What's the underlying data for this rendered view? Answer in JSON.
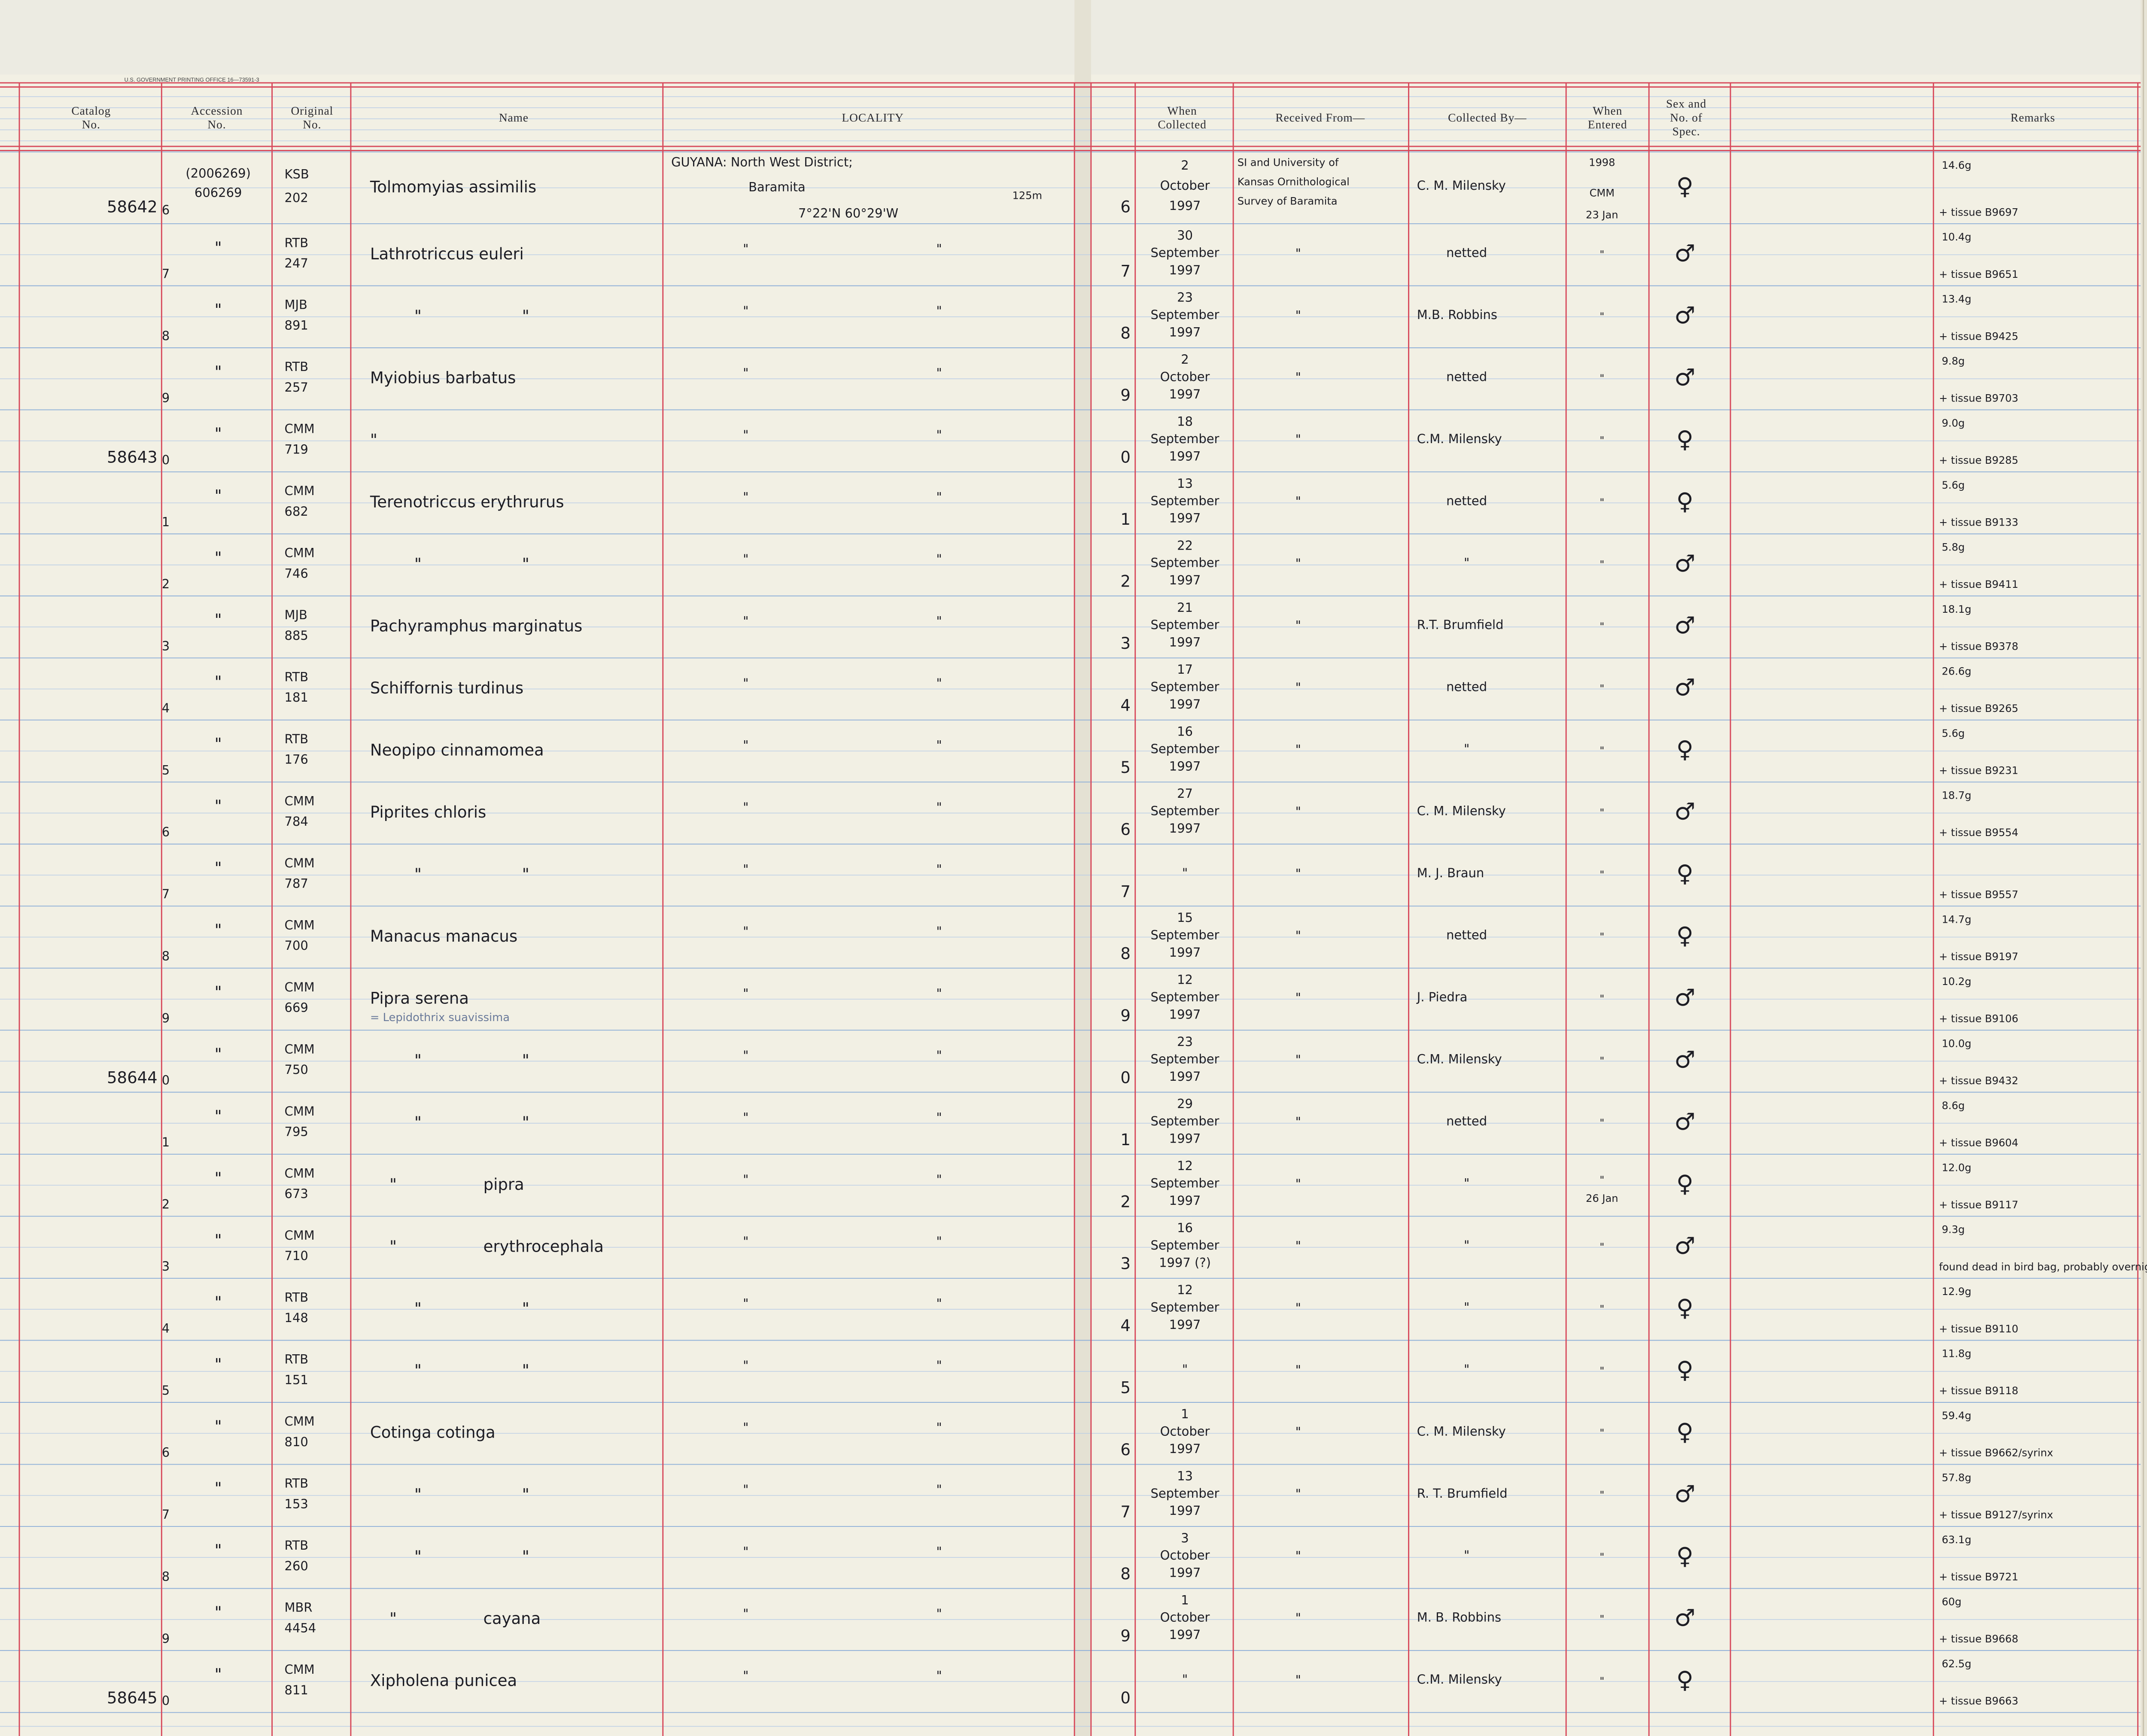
{
  "header": {
    "printer": "U.S. GOVERNMENT PRINTING OFFICE   16—73591-3",
    "columns": [
      [
        "Catalog",
        "No."
      ],
      [
        "Accession",
        "No."
      ],
      [
        "Original",
        "No."
      ],
      [
        "Name"
      ],
      [
        "LOCALITY"
      ],
      [
        "When",
        "Collected"
      ],
      [
        "Received From—"
      ],
      [
        "Collected By—"
      ],
      [
        "When",
        "Entered"
      ],
      [
        "Sex and",
        "No. of",
        "Spec."
      ],
      [
        "Remarks"
      ]
    ]
  },
  "rows": [
    {
      "catalog": "58642",
      "digit": "6",
      "accession": [
        "(2006269)",
        "606269"
      ],
      "original": [
        "KSB",
        "202"
      ],
      "name": "Tolmomyias assimilis",
      "locality": [
        "GUYANA: North West District;",
        "Baramita",
        "7°22'N 60°29'W",
        "125m"
      ],
      "number": "6",
      "collected": [
        "2",
        "October",
        "1997"
      ],
      "received": [
        "SI and University of",
        "Kansas Ornithological",
        "Survey of Baramita"
      ],
      "collected_by": "C. M. Milensky",
      "entered": [
        "1998",
        "CMM",
        "23 Jan"
      ],
      "sex": "♀",
      "weight": "14.6g",
      "tissue": "+ tissue B9697"
    },
    {
      "digit": "7",
      "accession": "\"",
      "original": [
        "RTB",
        "247"
      ],
      "name": "Lathrotriccus euleri",
      "locality": [
        "\"",
        "\""
      ],
      "number": "7",
      "collected": [
        "30",
        "September",
        "1997"
      ],
      "received": "\"",
      "collected_by": "netted",
      "entered": "\"",
      "sex": "♂",
      "weight": "10.4g",
      "tissue": "+ tissue B9651"
    },
    {
      "digit": "8",
      "accession": "\"",
      "original": [
        "MJB",
        "891"
      ],
      "name": [
        "\"",
        "\""
      ],
      "locality": [
        "\"",
        "\""
      ],
      "number": "8",
      "collected": [
        "23",
        "September",
        "1997"
      ],
      "received": "\"",
      "collected_by": "M.B. Robbins",
      "entered": "\"",
      "sex": "♂",
      "weight": "13.4g",
      "tissue": "+ tissue B9425"
    },
    {
      "digit": "9",
      "accession": "\"",
      "original": [
        "RTB",
        "257"
      ],
      "name": "Myiobius barbatus",
      "locality": [
        "\"",
        "\""
      ],
      "number": "9",
      "collected": [
        "2",
        "October",
        "1997"
      ],
      "received": "\"",
      "collected_by": "netted",
      "entered": "\"",
      "sex": "♂",
      "weight": "9.8g",
      "tissue": "+ tissue B9703"
    },
    {
      "catalog": "58643",
      "digit": "0",
      "accession": "\"",
      "original": [
        "CMM",
        "719"
      ],
      "name": "\"",
      "locality": [
        "\"",
        "\""
      ],
      "number": "0",
      "collected": [
        "18",
        "September",
        "1997"
      ],
      "received": "\"",
      "collected_by": "C.M. Milensky",
      "entered": "\"",
      "sex": "♀",
      "weight": "9.0g",
      "tissue": "+ tissue B9285"
    },
    {
      "digit": "1",
      "accession": "\"",
      "original": [
        "CMM",
        "682"
      ],
      "name": "Terenotriccus erythrurus",
      "locality": [
        "\"",
        "\""
      ],
      "number": "1",
      "collected": [
        "13",
        "September",
        "1997"
      ],
      "received": "\"",
      "collected_by": "netted",
      "entered": "\"",
      "sex": "♀",
      "weight": "5.6g",
      "tissue": "+ tissue B9133"
    },
    {
      "digit": "2",
      "accession": "\"",
      "original": [
        "CMM",
        "746"
      ],
      "name": [
        "\"",
        "\""
      ],
      "locality": [
        "\"",
        "\""
      ],
      "number": "2",
      "collected": [
        "22",
        "September",
        "1997"
      ],
      "received": "\"",
      "collected_by": "\"",
      "entered": "\"",
      "sex": "♂",
      "weight": "5.8g",
      "tissue": "+ tissue B9411"
    },
    {
      "digit": "3",
      "accession": "\"",
      "original": [
        "MJB",
        "885"
      ],
      "name": "Pachyramphus marginatus",
      "locality": [
        "\"",
        "\""
      ],
      "number": "3",
      "collected": [
        "21",
        "September",
        "1997"
      ],
      "received": "\"",
      "collected_by": "R.T. Brumfield",
      "entered": "\"",
      "sex": "♂",
      "weight": "18.1g",
      "tissue": "+ tissue B9378"
    },
    {
      "digit": "4",
      "accession": "\"",
      "original": [
        "RTB",
        "181"
      ],
      "name": "Schiffornis turdinus",
      "locality": [
        "\"",
        "\""
      ],
      "number": "4",
      "collected": [
        "17",
        "September",
        "1997"
      ],
      "received": "\"",
      "collected_by": "netted",
      "entered": "\"",
      "sex": "♂",
      "weight": "26.6g",
      "tissue": "+ tissue B9265"
    },
    {
      "digit": "5",
      "accession": "\"",
      "original": [
        "RTB",
        "176"
      ],
      "name": "Neopipo cinnamomea",
      "locality": [
        "\"",
        "\""
      ],
      "number": "5",
      "collected": [
        "16",
        "September",
        "1997"
      ],
      "received": "\"",
      "collected_by": "\"",
      "entered": "\"",
      "sex": "♀",
      "weight": "5.6g",
      "tissue": "+ tissue B9231"
    },
    {
      "digit": "6",
      "accession": "\"",
      "original": [
        "CMM",
        "784"
      ],
      "name": "Piprites chloris",
      "locality": [
        "\"",
        "\""
      ],
      "number": "6",
      "collected": [
        "27",
        "September",
        "1997"
      ],
      "received": "\"",
      "collected_by": "C. M. Milensky",
      "entered": "\"",
      "sex": "♂",
      "weight": "18.7g",
      "tissue": "+ tissue B9554"
    },
    {
      "digit": "7",
      "accession": "\"",
      "original": [
        "CMM",
        "787"
      ],
      "name": [
        "\"",
        "\""
      ],
      "locality": [
        "\"",
        "\""
      ],
      "number": "7",
      "collected": "\"",
      "received": "\"",
      "collected_by": "M. J. Braun",
      "entered": "\"",
      "sex": "♀",
      "tissue": "+ tissue B9557"
    },
    {
      "digit": "8",
      "accession": "\"",
      "original": [
        "CMM",
        "700"
      ],
      "name": "Manacus manacus",
      "locality": [
        "\"",
        "\""
      ],
      "number": "8",
      "collected": [
        "15",
        "September",
        "1997"
      ],
      "received": "\"",
      "collected_by": "netted",
      "entered": "\"",
      "sex": "♀",
      "weight": "14.7g",
      "tissue": "+ tissue B9197"
    },
    {
      "digit": "9",
      "accession": "\"",
      "original": [
        "CMM",
        "669"
      ],
      "name": "Pipra serena",
      "name_note": "= Lepidothrix suavissima",
      "locality": [
        "\"",
        "\""
      ],
      "number": "9",
      "collected": [
        "12",
        "September",
        "1997"
      ],
      "received": "\"",
      "collected_by": "J. Piedra",
      "entered": "\"",
      "sex": "♂",
      "weight": "10.2g",
      "tissue": "+ tissue B9106"
    },
    {
      "catalog": "58644",
      "digit": "0",
      "accession": "\"",
      "original": [
        "CMM",
        "750"
      ],
      "name": [
        "\"",
        "\""
      ],
      "locality": [
        "\"",
        "\""
      ],
      "number": "0",
      "collected": [
        "23",
        "September",
        "1997"
      ],
      "received": "\"",
      "collected_by": "C.M. Milensky",
      "entered": "\"",
      "sex": "♂",
      "weight": "10.0g",
      "tissue": "+ tissue B9432"
    },
    {
      "digit": "1",
      "accession": "\"",
      "original": [
        "CMM",
        "795"
      ],
      "name": [
        "\"",
        "\""
      ],
      "locality": [
        "\"",
        "\""
      ],
      "number": "1",
      "collected": [
        "29",
        "September",
        "1997"
      ],
      "received": "\"",
      "collected_by": "netted",
      "entered": "\"",
      "sex": "♂",
      "weight": "8.6g",
      "tissue": "+ tissue B9604"
    },
    {
      "digit": "2",
      "accession": "\"",
      "original": [
        "CMM",
        "673"
      ],
      "name": [
        "\"",
        "pipra"
      ],
      "locality": [
        "\"",
        "\""
      ],
      "number": "2",
      "collected": [
        "12",
        "September",
        "1997"
      ],
      "received": "\"",
      "collected_by": "\"",
      "entered": [
        "\"",
        "26 Jan"
      ],
      "sex": "♀",
      "weight": "12.0g",
      "tissue": "+ tissue B9117"
    },
    {
      "digit": "3",
      "accession": "\"",
      "original": [
        "CMM",
        "710"
      ],
      "name": [
        "\"",
        "erythrocephala"
      ],
      "locality": [
        "\"",
        "\""
      ],
      "number": "3",
      "collected": [
        "16",
        "September",
        "1997 (?)"
      ],
      "received": "\"",
      "collected_by": "\"",
      "entered": "\"",
      "sex": "♂",
      "weight": "9.3g",
      "tissue": "found dead in bird bag, probably overnight"
    },
    {
      "digit": "4",
      "accession": "\"",
      "original": [
        "RTB",
        "148"
      ],
      "name": [
        "\"",
        "\""
      ],
      "locality": [
        "\"",
        "\""
      ],
      "number": "4",
      "collected": [
        "12",
        "September",
        "1997"
      ],
      "received": "\"",
      "collected_by": "\"",
      "entered": "\"",
      "sex": "♀",
      "weight": "12.9g",
      "tissue": "+ tissue B9110"
    },
    {
      "digit": "5",
      "accession": "\"",
      "original": [
        "RTB",
        "151"
      ],
      "name": [
        "\"",
        "\""
      ],
      "locality": [
        "\"",
        "\""
      ],
      "number": "5",
      "collected": "\"",
      "received": "\"",
      "collected_by": "\"",
      "entered": "\"",
      "sex": "♀",
      "weight": "11.8g",
      "tissue": "+ tissue B9118"
    },
    {
      "digit": "6",
      "accession": "\"",
      "original": [
        "CMM",
        "810"
      ],
      "name": "Cotinga cotinga",
      "locality": [
        "\"",
        "\""
      ],
      "number": "6",
      "collected": [
        "1",
        "October",
        "1997"
      ],
      "received": "\"",
      "collected_by": "C. M. Milensky",
      "entered": "\"",
      "sex": "♀",
      "weight": "59.4g",
      "tissue": "+ tissue B9662/syrinx"
    },
    {
      "digit": "7",
      "accession": "\"",
      "original": [
        "RTB",
        "153"
      ],
      "name": [
        "\"",
        "\""
      ],
      "locality": [
        "\"",
        "\""
      ],
      "number": "7",
      "collected": [
        "13",
        "September",
        "1997"
      ],
      "received": "\"",
      "collected_by": "R. T. Brumfield",
      "entered": "\"",
      "sex": "♂",
      "weight": "57.8g",
      "tissue": "+ tissue B9127/syrinx"
    },
    {
      "digit": "8",
      "accession": "\"",
      "original": [
        "RTB",
        "260"
      ],
      "name": [
        "\"",
        "\""
      ],
      "locality": [
        "\"",
        "\""
      ],
      "number": "8",
      "collected": [
        "3",
        "October",
        "1997"
      ],
      "received": "\"",
      "collected_by": "\"",
      "entered": "\"",
      "sex": "♀",
      "weight": "63.1g",
      "tissue": "+ tissue B9721"
    },
    {
      "digit": "9",
      "accession": "\"",
      "original": [
        "MBR",
        "4454"
      ],
      "name": [
        "\"",
        "cayana"
      ],
      "locality": [
        "\"",
        "\""
      ],
      "number": "9",
      "collected": [
        "1",
        "October",
        "1997"
      ],
      "received": "\"",
      "collected_by": "M. B. Robbins",
      "entered": "\"",
      "sex": "♂",
      "weight": "60g",
      "tissue": "+ tissue B9668"
    },
    {
      "catalog": "58645",
      "digit": "0",
      "accession": "\"",
      "original": [
        "CMM",
        "811"
      ],
      "name": "Xipholena punicea",
      "locality": [
        "\"",
        "\""
      ],
      "number": "0",
      "collected": "\"",
      "received": "\"",
      "collected_by": "C.M. Milensky",
      "entered": "\"",
      "sex": "♀",
      "weight": "62.5g",
      "tissue": "+ tissue B9663"
    }
  ]
}
